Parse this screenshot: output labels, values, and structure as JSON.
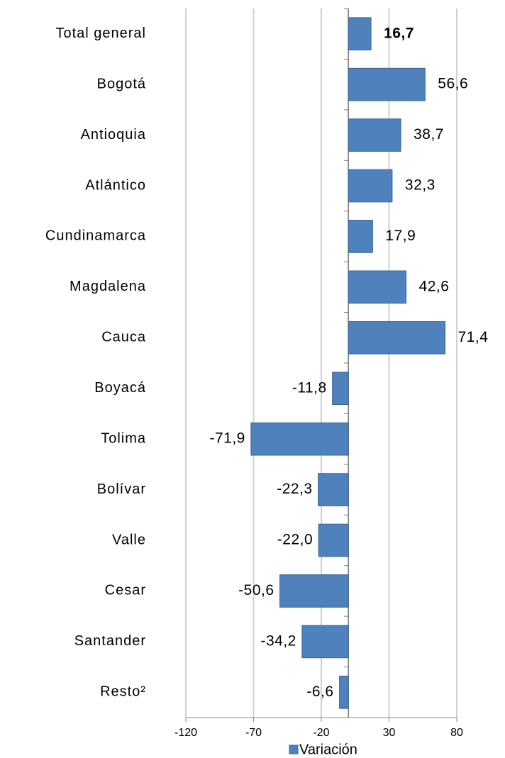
{
  "chart_data": {
    "type": "bar",
    "orientation": "horizontal",
    "categories": [
      "Total general",
      "Bogotá",
      "Antioquia",
      "Atlántico",
      "Cundinamarca",
      "Magdalena",
      "Cauca",
      "Boyacá",
      "Tolima",
      "Bolívar",
      "Valle",
      "Cesar",
      "Santander",
      "Resto²"
    ],
    "series": [
      {
        "name": "Variación",
        "color": "#4f81bd",
        "values": [
          16.7,
          56.6,
          38.7,
          32.3,
          17.9,
          42.6,
          71.4,
          -11.8,
          -71.9,
          -22.3,
          -22.0,
          -50.6,
          -34.2,
          -6.6
        ],
        "value_labels": [
          "16,7",
          "56,6",
          "38,7",
          "32,3",
          "17,9",
          "42,6",
          "71,4",
          "-11,8",
          "-71,9",
          "-22,3",
          "-22,0",
          "-50,6",
          "-34,2",
          "-6,6"
        ]
      }
    ],
    "xlim": [
      -120,
      80
    ],
    "xticks": [
      -120,
      -70,
      -20,
      30,
      80
    ],
    "grid": true,
    "legend": "bottom"
  }
}
